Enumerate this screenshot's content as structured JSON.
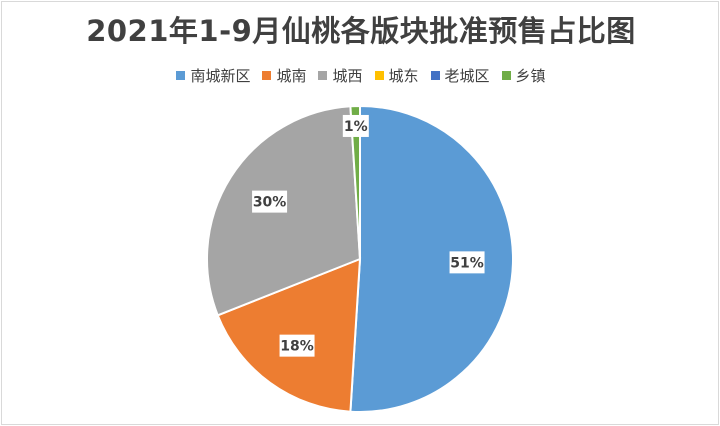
{
  "chart_data": {
    "type": "pie",
    "title": "2021年1-9月仙桃各版块批准预售占比图",
    "categories": [
      "南城新区",
      "城南",
      "城西",
      "城东",
      "老城区",
      "乡镇"
    ],
    "values": [
      51,
      18,
      30,
      0,
      0,
      1
    ],
    "data_labels": [
      "51%",
      "18%",
      "30%",
      "",
      "",
      "1%"
    ],
    "colors": [
      "#5b9bd5",
      "#ed7d31",
      "#a5a5a5",
      "#ffc000",
      "#4472c4",
      "#70ad47"
    ],
    "legend_position": "top"
  }
}
